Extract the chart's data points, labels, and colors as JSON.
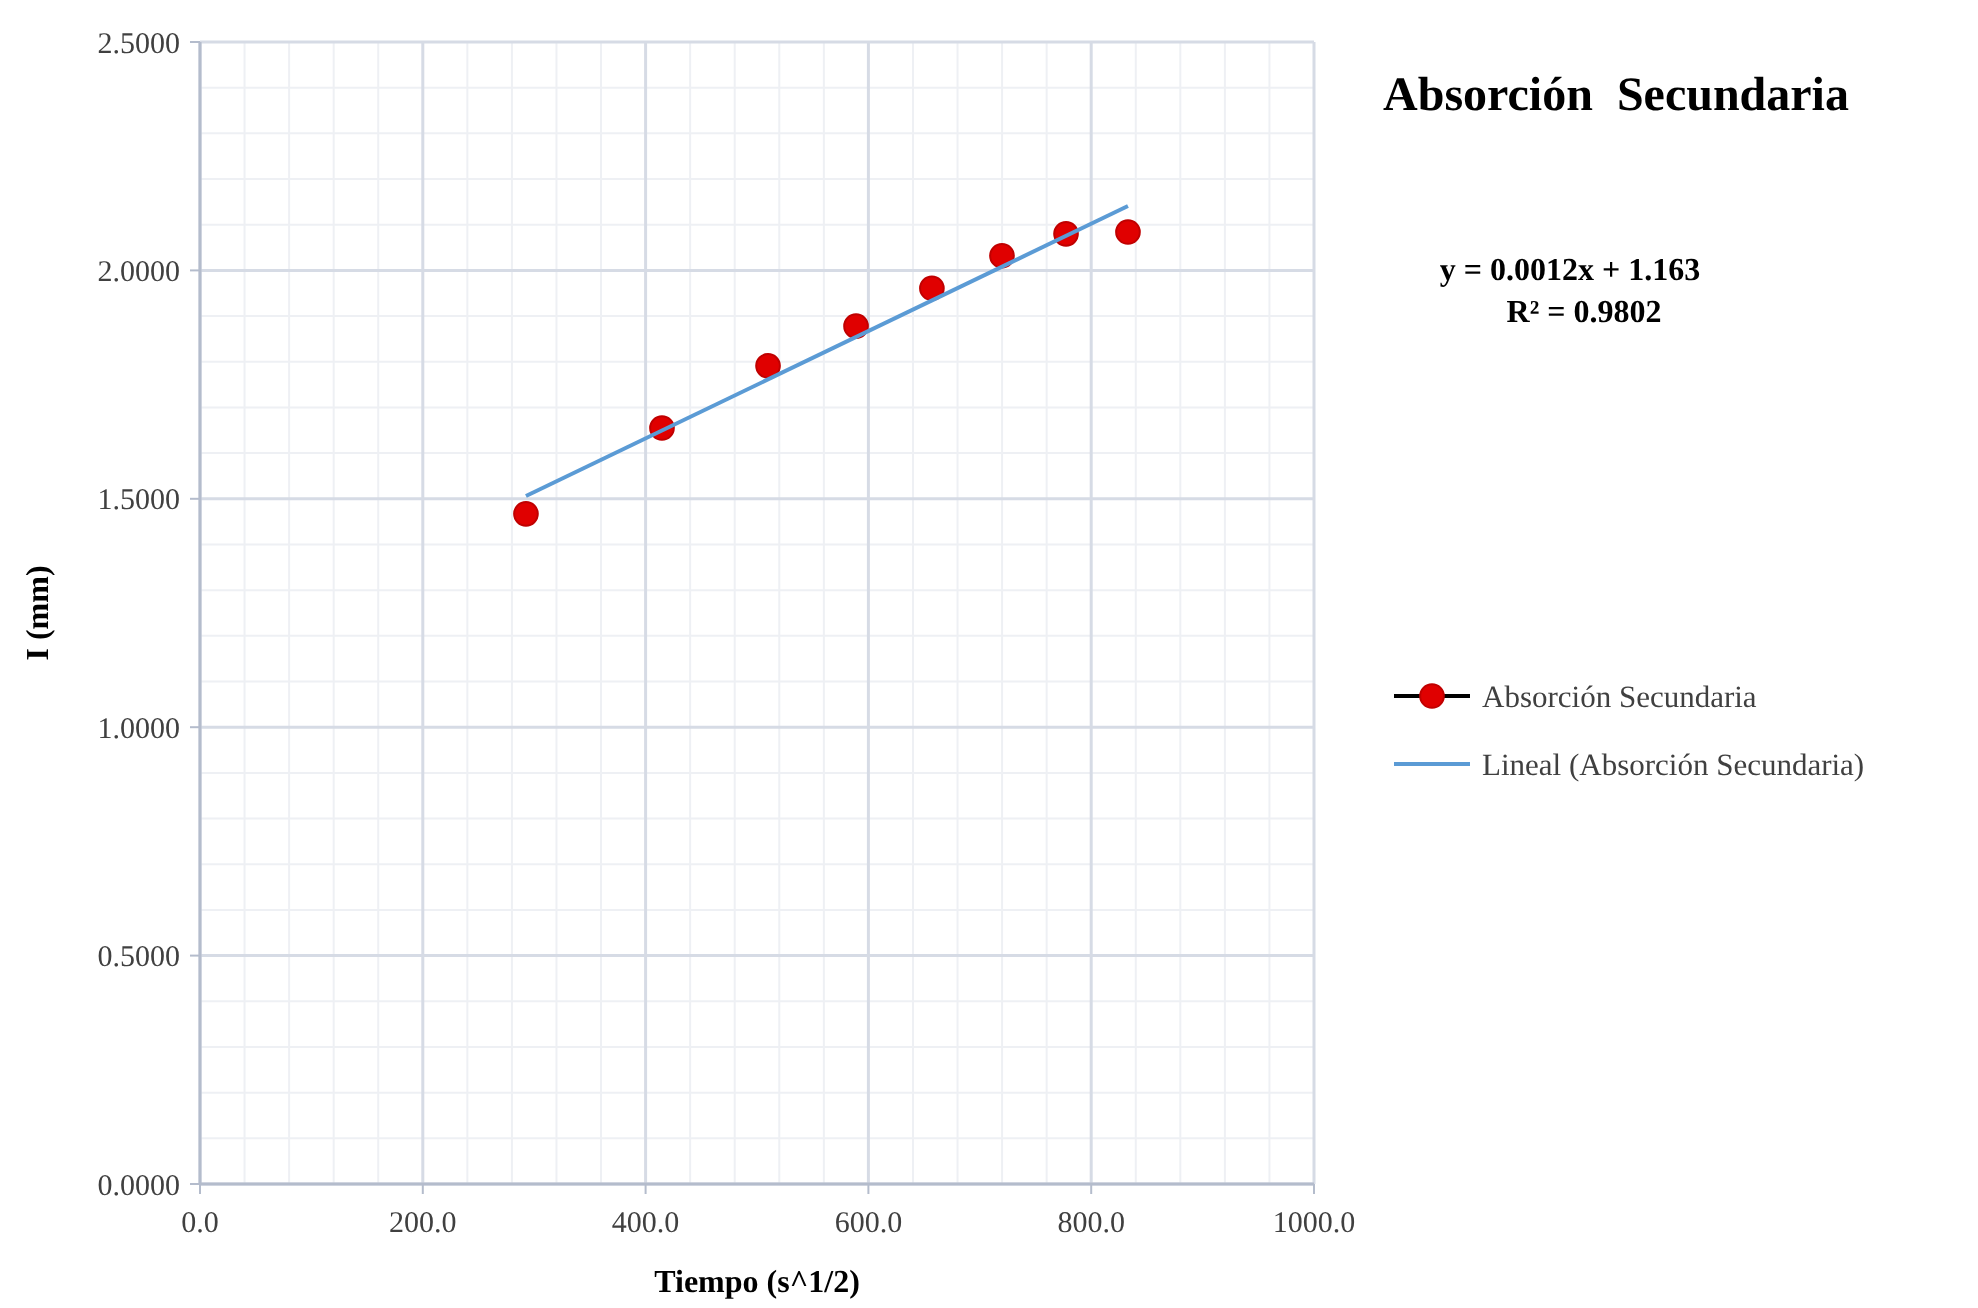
{
  "chart_data": {
    "type": "scatter",
    "title": "Absorción  Secundaria",
    "xlabel": "Tiempo (s^1/2)",
    "ylabel": "I (mm)",
    "xlim": [
      0,
      1000
    ],
    "xticks": [
      {
        "value": 0,
        "label": "0.0"
      },
      {
        "value": 200,
        "label": "200.0"
      },
      {
        "value": 400,
        "label": "400.0"
      },
      {
        "value": 600,
        "label": "600.0"
      },
      {
        "value": 800,
        "label": "800.0"
      },
      {
        "value": 1000,
        "label": "1000.0"
      }
    ],
    "ylim": [
      0,
      2.5
    ],
    "yticks": [
      {
        "value": 0,
        "label": "0.0000"
      },
      {
        "value": 0.5,
        "label": "0.5000"
      },
      {
        "value": 1,
        "label": "1.0000"
      },
      {
        "value": 1.5,
        "label": "1.5000"
      },
      {
        "value": 2,
        "label": "2.0000"
      },
      {
        "value": 2.5,
        "label": "2.5000"
      }
    ],
    "grid": true,
    "legend": "right",
    "annotations": [
      "y = 0.0012x + 1.163",
      "R² = 0.9802"
    ],
    "series": [
      {
        "name": "Absorción Secundaria",
        "marker": "circle",
        "color": "#e00000",
        "x": [
          292.6,
          414.7,
          509.9,
          588.9,
          657,
          719.9,
          777.4,
          833
        ],
        "values": [
          1.467,
          1.655,
          1.791,
          1.878,
          1.961,
          2.032,
          2.08,
          2.084
        ]
      },
      {
        "name": "Lineal (Absorción Secundaria)",
        "type": "line",
        "marker": "none",
        "color": "#5b9bd5",
        "x": [
          292.6,
          833
        ],
        "values": [
          1.506,
          2.141
        ]
      }
    ]
  }
}
